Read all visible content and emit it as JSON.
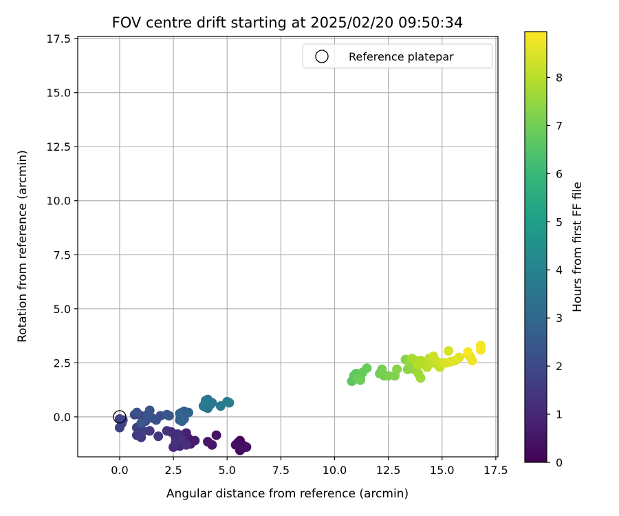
{
  "chart_data": {
    "type": "scatter",
    "title": "FOV centre drift starting at 2025/02/20 09:50:34",
    "xlabel": "Angular distance from reference (arcmin)",
    "ylabel": "Rotation from reference (arcmin)",
    "xlim": [
      -1.95,
      17.6
    ],
    "ylim": [
      -1.85,
      17.6
    ],
    "xticks": [
      "0.0",
      "2.5",
      "5.0",
      "7.5",
      "10.0",
      "12.5",
      "15.0",
      "17.5"
    ],
    "yticks": [
      "0.0",
      "2.5",
      "5.0",
      "7.5",
      "10.0",
      "12.5",
      "15.0",
      "17.5"
    ],
    "grid": true,
    "legend": {
      "position": "top-right",
      "entries": [
        "Reference platepar"
      ]
    },
    "colormap": "viridis",
    "colorbar": {
      "label": "Hours from first FF file",
      "range": [
        0,
        8.95
      ],
      "ticks": [
        "0",
        "1",
        "2",
        "3",
        "4",
        "5",
        "6",
        "7",
        "8"
      ]
    },
    "reference_point": {
      "x": 0.0,
      "y": 0.0
    },
    "series": [
      {
        "points": [
          [
            5.6,
            -1.1,
            0.05
          ],
          [
            5.5,
            -1.3,
            0.1
          ],
          [
            5.8,
            -1.35,
            0.15
          ],
          [
            5.6,
            -1.55,
            0.2
          ],
          [
            5.5,
            -1.2,
            0.25
          ],
          [
            5.7,
            -1.45,
            0.3
          ],
          [
            5.4,
            -1.3,
            0.35
          ],
          [
            5.9,
            -1.4,
            0.4
          ],
          [
            4.5,
            -0.85,
            0.45
          ],
          [
            4.3,
            -1.3,
            0.5
          ],
          [
            4.1,
            -1.15,
            0.55
          ],
          [
            3.3,
            -1.25,
            0.6
          ],
          [
            3.2,
            -1.0,
            0.65
          ],
          [
            3.5,
            -1.1,
            0.7
          ],
          [
            2.9,
            -0.85,
            0.75
          ],
          [
            2.7,
            -1.15,
            0.8
          ],
          [
            3.1,
            -0.75,
            0.85
          ],
          [
            2.8,
            -1.35,
            0.9
          ],
          [
            2.6,
            -0.95,
            0.95
          ],
          [
            3.0,
            -1.2,
            1.0
          ],
          [
            2.5,
            -1.4,
            1.05
          ],
          [
            2.4,
            -0.7,
            1.1
          ],
          [
            2.7,
            -0.8,
            1.15
          ],
          [
            3.1,
            -1.3,
            1.2
          ],
          [
            2.9,
            -1.05,
            1.25
          ],
          [
            2.6,
            -1.2,
            1.3
          ],
          [
            2.2,
            -0.65,
            1.35
          ],
          [
            1.8,
            -0.9,
            1.4
          ],
          [
            1.4,
            -0.65,
            1.45
          ],
          [
            1.0,
            -0.95,
            1.5
          ],
          [
            0.8,
            -0.85,
            1.55
          ],
          [
            0.8,
            -0.5,
            1.6
          ],
          [
            1.1,
            -0.65,
            1.65
          ],
          [
            0.0,
            -0.5,
            1.7
          ],
          [
            0.1,
            -0.3,
            1.75
          ],
          [
            0.0,
            -0.1,
            1.8
          ],
          [
            0.15,
            -0.15,
            1.85
          ],
          [
            0.7,
            0.1,
            1.9
          ],
          [
            1.0,
            0.05,
            1.95
          ],
          [
            1.3,
            0.1,
            2.0
          ],
          [
            1.5,
            -0.05,
            2.05
          ],
          [
            1.2,
            -0.2,
            2.1
          ],
          [
            1.9,
            0.05,
            2.15
          ],
          [
            1.7,
            -0.15,
            2.2
          ],
          [
            0.8,
            0.2,
            2.25
          ],
          [
            1.4,
            0.3,
            2.3
          ],
          [
            1.3,
            0.05,
            2.35
          ],
          [
            2.2,
            0.1,
            2.4
          ],
          [
            2.3,
            0.05,
            2.45
          ],
          [
            1.0,
            -0.3,
            2.5
          ],
          [
            2.8,
            -0.15,
            2.55
          ],
          [
            3.0,
            0.25,
            2.6
          ],
          [
            2.9,
            0.2,
            2.65
          ],
          [
            3.0,
            -0.1,
            2.7
          ],
          [
            2.8,
            0.15,
            2.75
          ],
          [
            3.2,
            0.2,
            2.8
          ],
          [
            2.9,
            -0.2,
            2.85
          ],
          [
            4.0,
            0.45,
            3.3
          ],
          [
            4.1,
            0.8,
            3.35
          ],
          [
            4.0,
            0.6,
            3.4
          ],
          [
            4.2,
            0.55,
            3.45
          ],
          [
            4.1,
            0.4,
            3.5
          ],
          [
            4.3,
            0.65,
            3.55
          ],
          [
            3.9,
            0.5,
            3.6
          ],
          [
            4.0,
            0.75,
            3.65
          ],
          [
            4.7,
            0.5,
            3.7
          ],
          [
            5.0,
            0.7,
            3.75
          ],
          [
            5.1,
            0.65,
            3.8
          ],
          [
            10.8,
            1.65,
            6.6
          ],
          [
            10.9,
            1.9,
            6.65
          ],
          [
            11.0,
            2.0,
            6.7
          ],
          [
            11.2,
            1.85,
            6.75
          ],
          [
            11.3,
            2.05,
            6.8
          ],
          [
            11.2,
            1.7,
            6.85
          ],
          [
            11.5,
            2.25,
            6.9
          ],
          [
            11.1,
            1.75,
            6.95
          ],
          [
            12.1,
            2.0,
            7.0
          ],
          [
            12.2,
            2.2,
            7.05
          ],
          [
            12.3,
            1.9,
            7.1
          ],
          [
            12.5,
            1.9,
            7.15
          ],
          [
            12.8,
            1.9,
            7.2
          ],
          [
            12.9,
            2.2,
            7.25
          ],
          [
            13.3,
            2.65,
            7.3
          ],
          [
            13.4,
            2.2,
            7.35
          ],
          [
            13.6,
            2.5,
            7.4
          ],
          [
            13.7,
            2.2,
            7.45
          ],
          [
            13.5,
            2.5,
            7.5
          ],
          [
            13.8,
            2.35,
            7.55
          ],
          [
            13.9,
            2.0,
            7.6
          ],
          [
            14.0,
            1.8,
            7.65
          ],
          [
            14.1,
            2.5,
            7.7
          ],
          [
            13.6,
            2.7,
            7.75
          ],
          [
            13.8,
            2.6,
            7.8
          ],
          [
            14.0,
            2.6,
            7.85
          ],
          [
            14.2,
            2.45,
            7.9
          ],
          [
            13.9,
            2.4,
            7.95
          ],
          [
            14.3,
            2.3,
            8.0
          ],
          [
            14.4,
            2.7,
            8.05
          ],
          [
            14.6,
            2.5,
            8.1
          ],
          [
            14.8,
            2.4,
            8.15
          ],
          [
            14.9,
            2.3,
            8.2
          ],
          [
            14.7,
            2.6,
            8.25
          ],
          [
            14.6,
            2.8,
            8.3
          ],
          [
            15.0,
            2.5,
            8.35
          ],
          [
            15.3,
            3.05,
            8.4
          ],
          [
            15.2,
            2.5,
            8.45
          ],
          [
            15.4,
            2.55,
            8.5
          ],
          [
            15.6,
            2.6,
            8.55
          ],
          [
            15.8,
            2.75,
            8.6
          ],
          [
            16.2,
            2.9,
            8.65
          ],
          [
            16.3,
            2.8,
            8.7
          ],
          [
            16.4,
            2.6,
            8.75
          ],
          [
            16.8,
            3.3,
            8.8
          ],
          [
            16.8,
            3.1,
            8.85
          ],
          [
            16.2,
            3.0,
            8.9
          ]
        ]
      }
    ]
  }
}
